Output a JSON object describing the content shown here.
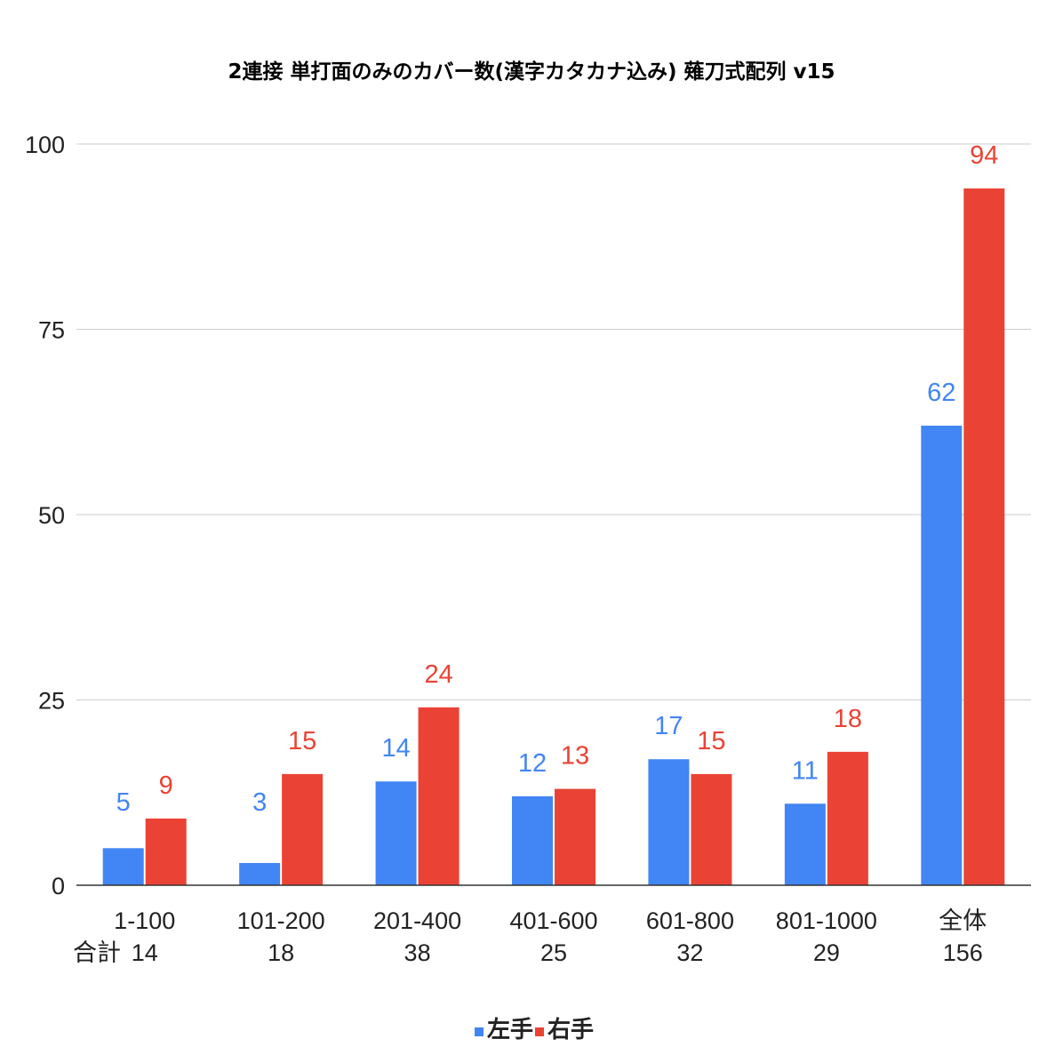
{
  "chart_data": {
    "type": "bar",
    "title": "2連接 単打面のみのカバー数(漢字カタカナ込み) 薙刀式配列 v15",
    "categories": [
      "1-100",
      "101-200",
      "201-400",
      "401-600",
      "601-800",
      "801-1000",
      "全体"
    ],
    "totals_label": "合計",
    "totals": [
      "14",
      "18",
      "38",
      "25",
      "32",
      "29",
      "156"
    ],
    "series": [
      {
        "name": "左手",
        "color": "#4285f4",
        "values": [
          5,
          3,
          14,
          12,
          17,
          11,
          62
        ]
      },
      {
        "name": "右手",
        "color": "#ea4335",
        "values": [
          9,
          15,
          24,
          13,
          15,
          18,
          94
        ]
      }
    ],
    "ylim": [
      0,
      100
    ],
    "yticks": [
      0,
      25,
      50,
      75,
      100
    ],
    "grid": true,
    "legend": "bottom",
    "data_labels": true
  }
}
